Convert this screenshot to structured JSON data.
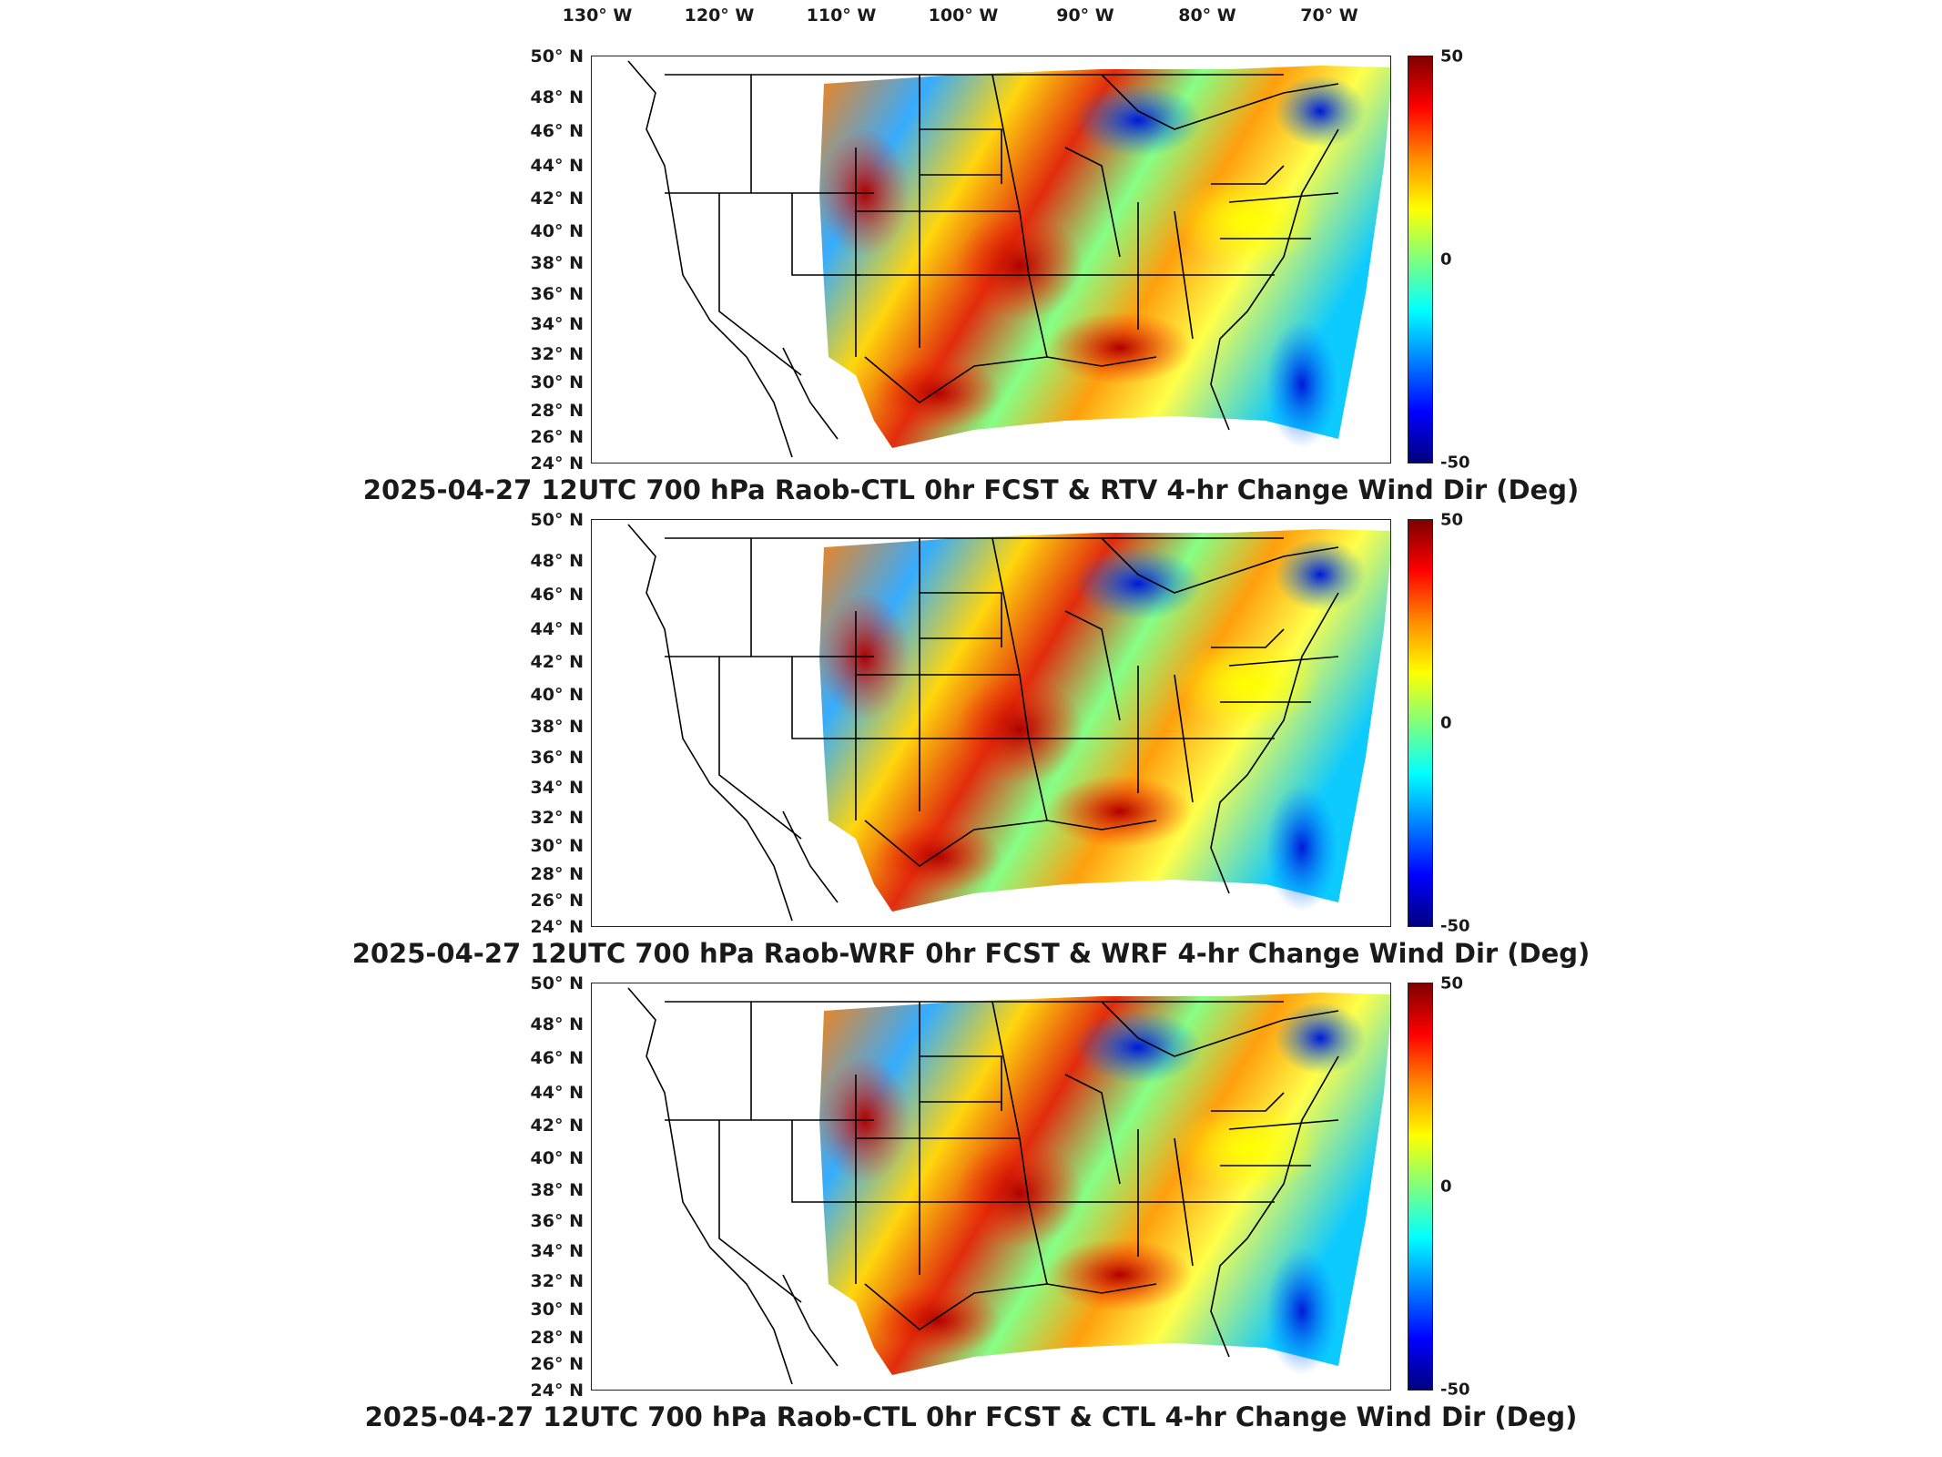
{
  "longitude_labels": [
    "130° W",
    "120° W",
    "110° W",
    "100° W",
    "90° W",
    "80° W",
    "70° W"
  ],
  "latitude_labels": [
    "50° N",
    "48° N",
    "46° N",
    "44° N",
    "42° N",
    "40° N",
    "38° N",
    "36° N",
    "34° N",
    "32° N",
    "30° N",
    "28° N",
    "26° N",
    "24° N"
  ],
  "colorbar": {
    "max_label": "50",
    "mid_label": "0",
    "min_label": "-50",
    "colors": [
      "#7f0000",
      "#ff0000",
      "#ff8c00",
      "#ffff00",
      "#7fff7f",
      "#00ffff",
      "#0080ff",
      "#0000ff",
      "#00007f"
    ]
  },
  "panels": [
    {
      "title": "2025-04-27 12UTC 700 hPa Raob-CTL 0hr FCST & RTV 4-hr Change Wind Dir (Deg)"
    },
    {
      "title": "2025-04-27 12UTC 700 hPa Raob-WRF 0hr FCST & WRF 4-hr Change Wind Dir (Deg)"
    },
    {
      "title": "2025-04-27 12UTC 700 hPa Raob-CTL 0hr FCST & CTL 4-hr Change Wind Dir (Deg)"
    }
  ]
}
